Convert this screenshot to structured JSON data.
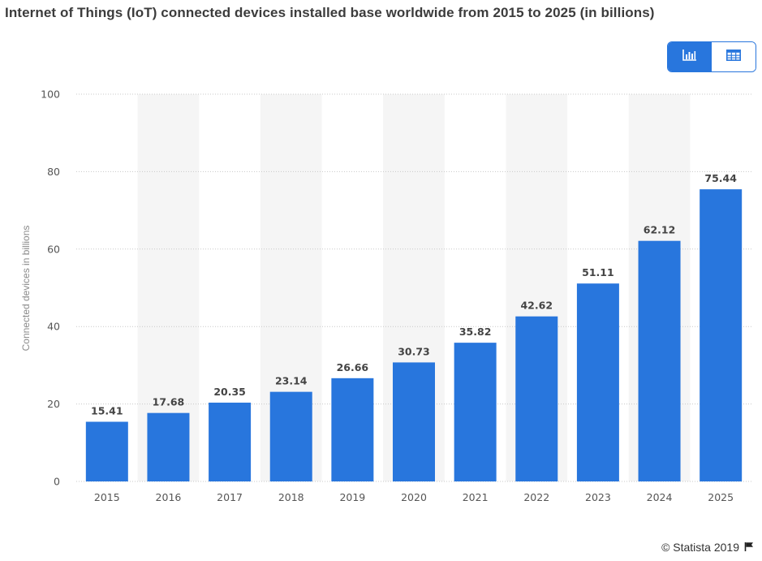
{
  "title": "Internet of Things (IoT) connected devices installed base worldwide from 2015 to 2025 (in billions)",
  "footer": {
    "copyright": "© Statista 2019",
    "flag_icon": "flag-icon"
  },
  "view_toggle": {
    "chart_icon": "bar-chart-icon",
    "table_icon": "table-icon",
    "active": "chart"
  },
  "colors": {
    "bar": "#2876dd",
    "band": "#f5f5f5",
    "grid": "#c8c8c8",
    "accent": "#2876dd"
  },
  "chart_data": {
    "type": "bar",
    "title": "Internet of Things (IoT) connected devices installed base worldwide from 2015 to 2025 (in billions)",
    "xlabel": "",
    "ylabel": "Connected devices in billions",
    "categories": [
      "2015",
      "2016",
      "2017",
      "2018",
      "2019",
      "2020",
      "2021",
      "2022",
      "2023",
      "2024",
      "2025"
    ],
    "values": [
      15.41,
      17.68,
      20.35,
      23.14,
      26.66,
      30.73,
      35.82,
      42.62,
      51.11,
      62.12,
      75.44
    ],
    "value_labels": [
      "15.41",
      "17.68",
      "20.35",
      "23.14",
      "26.66",
      "30.73",
      "35.82",
      "42.62",
      "51.11",
      "62.12",
      "75.44"
    ],
    "ylim": [
      0,
      100
    ],
    "yticks": [
      "0",
      "20",
      "40",
      "60",
      "80",
      "100"
    ],
    "grid": true,
    "grid_style": "dotted",
    "alternating_bands": true,
    "legend": "none"
  }
}
